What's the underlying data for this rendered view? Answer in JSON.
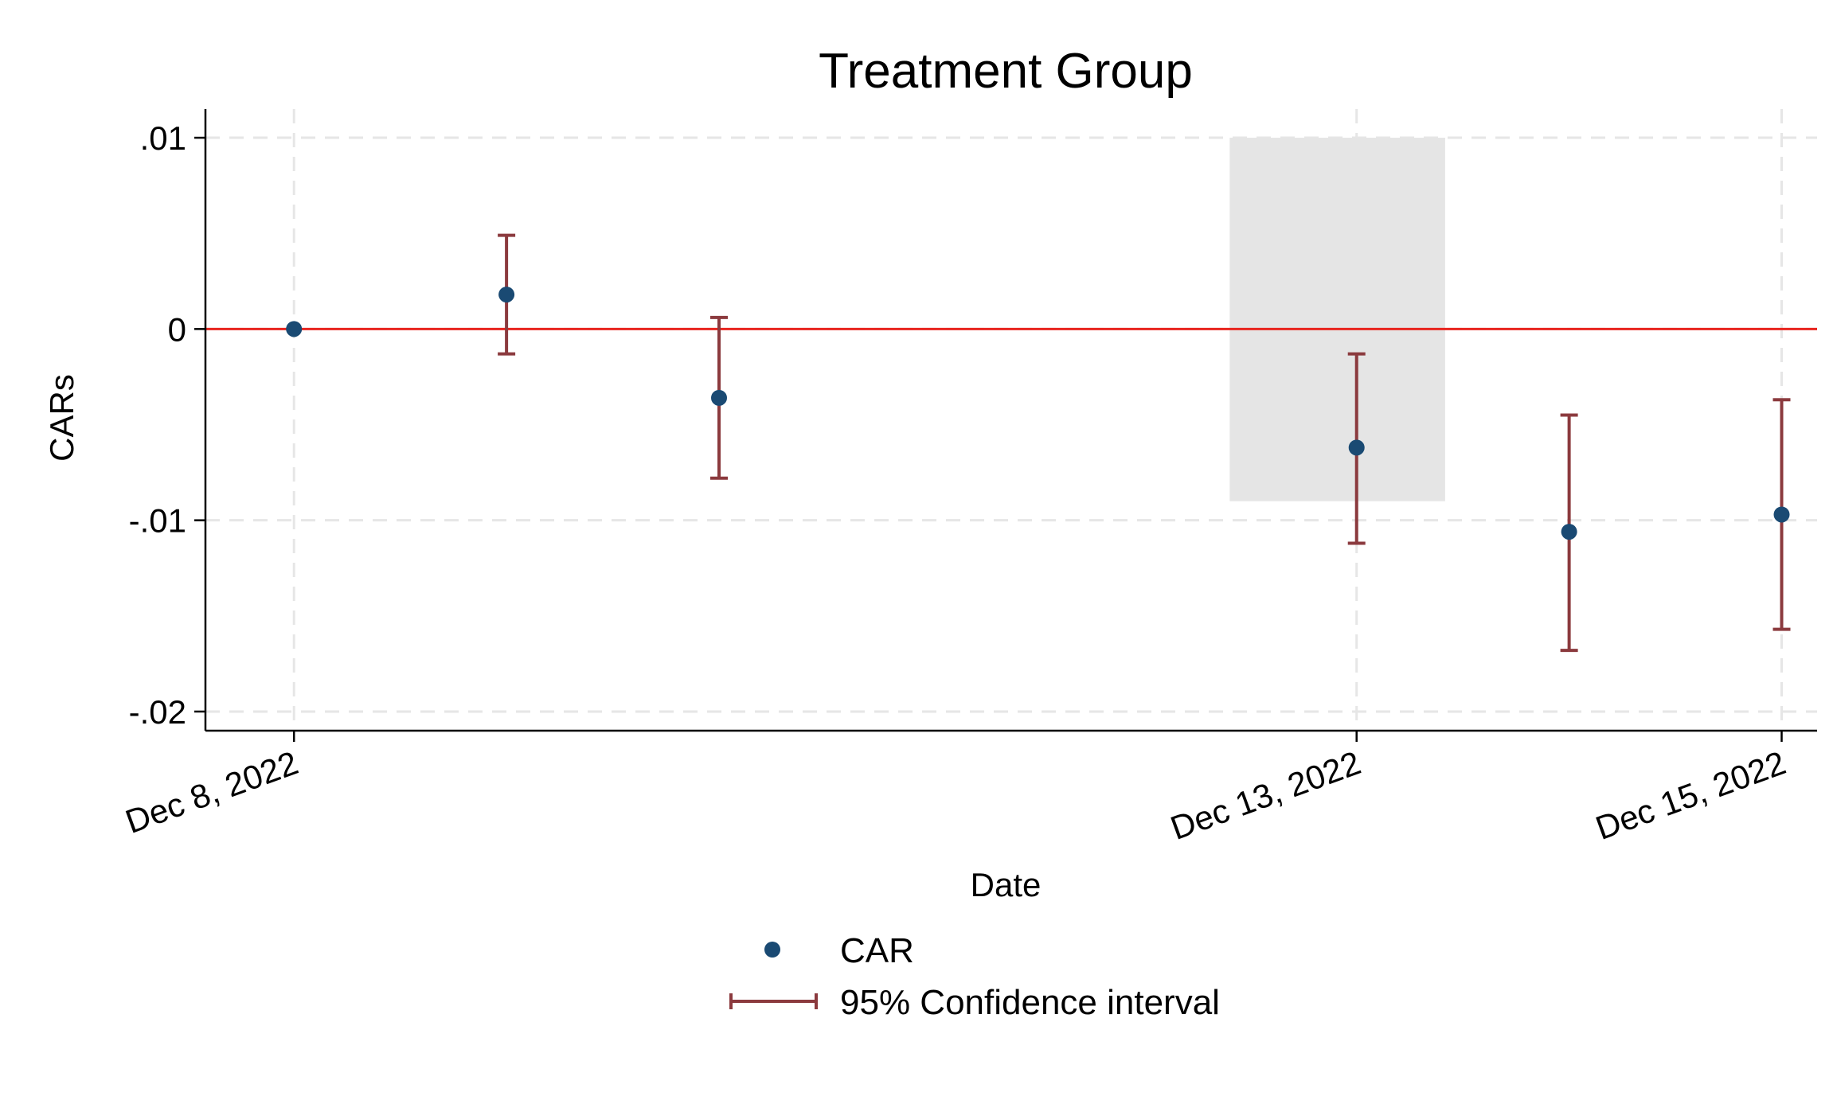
{
  "chart_data": {
    "type": "scatter",
    "title": "Treatment Group",
    "xlabel": "Date",
    "ylabel": "CARs",
    "x_ticks": [
      "Dec 8, 2022",
      "Dec 13, 2022",
      "Dec 15, 2022"
    ],
    "y_ticks": [
      ".01",
      "0",
      "-.01",
      "-.02"
    ],
    "ylim": [
      -0.021,
      0.0115
    ],
    "xlim": [
      "2022-12-07 14:00",
      "2022-12-15 04:00"
    ],
    "grid": true,
    "reference_line": {
      "y": 0,
      "color": "#e8251f"
    },
    "shaded_region": {
      "x": [
        "2022-12-12 09:40",
        "2022-12-13 10:00"
      ],
      "y": [
        -0.009,
        0.01
      ],
      "color": "#e5e5e5"
    },
    "series": [
      {
        "name": "CAR",
        "color": "#1a4a73",
        "points": [
          {
            "x": "2022-12-08",
            "y": 0.0
          },
          {
            "x": "2022-12-09",
            "y": 0.0018
          },
          {
            "x": "2022-12-10",
            "y": -0.0036
          },
          {
            "x": "2022-12-13",
            "y": -0.0062
          },
          {
            "x": "2022-12-14",
            "y": -0.0106
          },
          {
            "x": "2022-12-15",
            "y": -0.0097
          }
        ]
      },
      {
        "name": "95% Confidence interval",
        "color": "#8b3a3e",
        "intervals": [
          {
            "x": "2022-12-09",
            "low": -0.0013,
            "high": 0.0049
          },
          {
            "x": "2022-12-10",
            "low": -0.0078,
            "high": 0.0006
          },
          {
            "x": "2022-12-13",
            "low": -0.0112,
            "high": -0.0013
          },
          {
            "x": "2022-12-14",
            "low": -0.0168,
            "high": -0.0045
          },
          {
            "x": "2022-12-15",
            "low": -0.0157,
            "high": -0.0037
          }
        ]
      }
    ],
    "legend": {
      "placement": "bottom-center",
      "entries": [
        "CAR",
        "95% Confidence interval"
      ]
    }
  }
}
